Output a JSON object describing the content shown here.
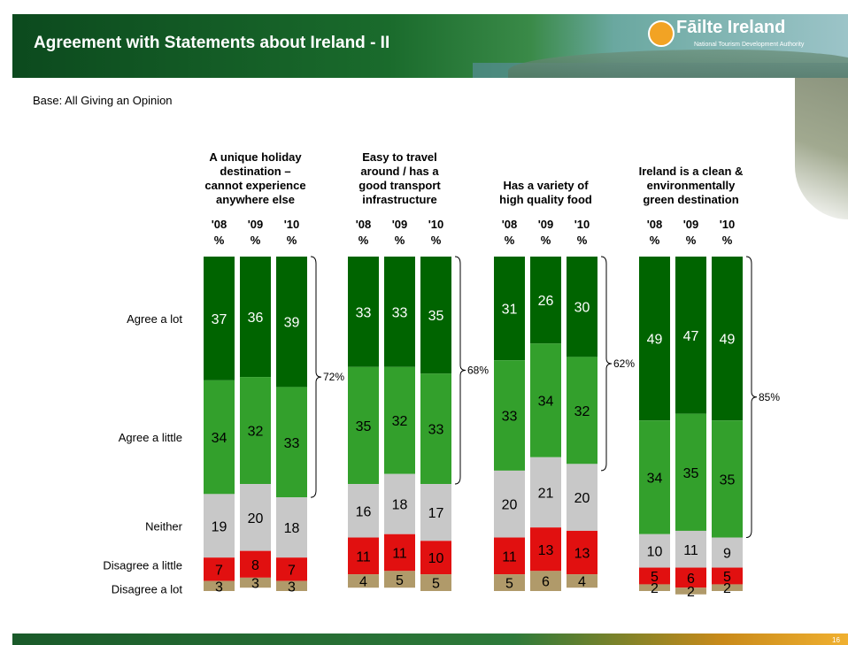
{
  "header": {
    "title": "Agreement with Statements about Ireland - II",
    "logo_name": "Fāilte Ireland",
    "logo_subtitle": "National Tourism Development Authority"
  },
  "base_note": "Base: All Giving an Opinion",
  "page_number": "16",
  "colors": {
    "agree_a_lot": "#006400",
    "agree_a_little": "#33a02c",
    "neither": "#c8c8c8",
    "disagree_a_little": "#e11010",
    "disagree_a_lot": "#b09a6a"
  },
  "chart_data": {
    "type": "bar",
    "stacked": true,
    "categories_per_group": [
      "'08",
      "'09",
      "'10"
    ],
    "unit_label": "%",
    "row_labels": [
      "Agree a lot",
      "Agree a little",
      "Neither",
      "Disagree a little",
      "Disagree a lot"
    ],
    "ylim": [
      0,
      100
    ],
    "groups": [
      {
        "title": [
          "A unique holiday",
          "destination –",
          "cannot experience",
          "anywhere else"
        ],
        "bracket_label": "72%",
        "bars": [
          {
            "year": "'08",
            "values": [
              37,
              34,
              19,
              7,
              3
            ]
          },
          {
            "year": "'09",
            "values": [
              36,
              32,
              20,
              8,
              3
            ]
          },
          {
            "year": "'10",
            "values": [
              39,
              33,
              18,
              7,
              3
            ]
          }
        ]
      },
      {
        "title": [
          "Easy to travel",
          "around / has a",
          "good transport",
          "infrastructure"
        ],
        "bracket_label": "68%",
        "bars": [
          {
            "year": "'08",
            "values": [
              33,
              35,
              16,
              11,
              4
            ]
          },
          {
            "year": "'09",
            "values": [
              33,
              32,
              18,
              11,
              5
            ]
          },
          {
            "year": "'10",
            "values": [
              35,
              33,
              17,
              10,
              5
            ]
          }
        ]
      },
      {
        "title": [
          "Has a variety of",
          "high quality food"
        ],
        "bracket_label": "62%",
        "bars": [
          {
            "year": "'08",
            "values": [
              31,
              33,
              20,
              11,
              5
            ]
          },
          {
            "year": "'09",
            "values": [
              26,
              34,
              21,
              13,
              6
            ]
          },
          {
            "year": "'10",
            "values": [
              30,
              32,
              20,
              13,
              4
            ]
          }
        ]
      },
      {
        "title": [
          "Ireland is a clean &",
          "environmentally",
          "green destination"
        ],
        "bracket_label": "85%",
        "bars": [
          {
            "year": "'08",
            "values": [
              49,
              34,
              10,
              5,
              2
            ]
          },
          {
            "year": "'09",
            "values": [
              47,
              35,
              11,
              6,
              2
            ]
          },
          {
            "year": "'10",
            "values": [
              49,
              35,
              9,
              5,
              2
            ]
          }
        ]
      }
    ]
  }
}
